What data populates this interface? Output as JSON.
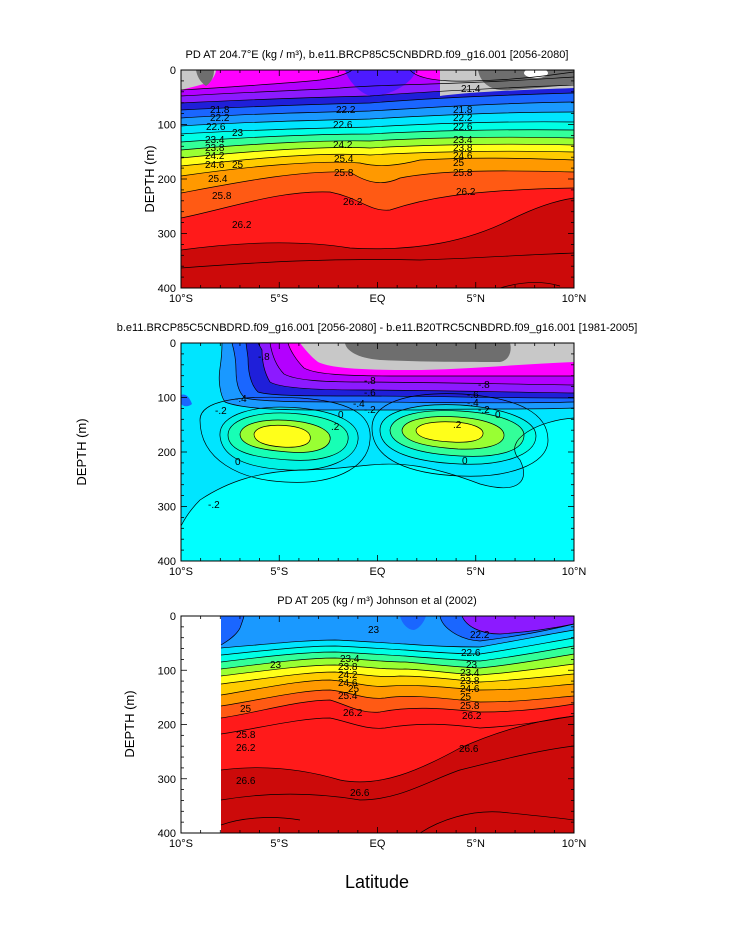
{
  "figure": {
    "xlabel": "Latitude",
    "colors": {
      "magenta": "#ff00ff",
      "violet": "#b300ff",
      "purple": "#8c1aff",
      "blue_dark": "#1f1fd9",
      "blue": "#1a66ff",
      "sky": "#1a99ff",
      "cyan": "#00e5ff",
      "aqua": "#00ffe5",
      "green": "#33ff99",
      "lime": "#99ff33",
      "yellow": "#ffff1a",
      "gold": "#ffcc00",
      "orange": "#ff9900",
      "orange_red": "#ff5a14",
      "red": "#ff1a1a",
      "dark_red": "#cc0a0a",
      "gray_light": "#c8c8c8",
      "gray_mid": "#a6a6a6",
      "gray_dark": "#6e6e6e",
      "white": "#ffffff"
    }
  },
  "chart_data": [
    {
      "type": "heatmap",
      "title": "PD AT 204.7°E (kg / m³), b.e11.BRCP85C5CNBDRD.f09_g16.001 [2056-2080]",
      "xlabel": "",
      "ylabel": "DEPTH (m)",
      "xlim": [
        -10,
        10
      ],
      "ylim": [
        400,
        0
      ],
      "x_tick_labels": [
        "10°S",
        "5°S",
        "EQ",
        "5°N",
        "10°N"
      ],
      "y_tick_labels": [
        "0",
        "100",
        "200",
        "300",
        "400"
      ],
      "contour_labels": [
        "21.8",
        "22.2",
        "22.6",
        "23",
        "23.4",
        "23.8",
        "24.2",
        "24.6",
        "25",
        "25.4",
        "25.8",
        "26.2",
        "21.4"
      ]
    },
    {
      "type": "heatmap",
      "title": "b.e11.BRCP85C5CNBDRD.f09_g16.001 [2056-2080] - b.e11.B20TRC5CNBDRD.f09_g16.001 [1981-2005]",
      "xlabel": "",
      "ylabel": "DEPTH (m)",
      "xlim": [
        -10,
        10
      ],
      "ylim": [
        400,
        0
      ],
      "x_tick_labels": [
        "10°S",
        "5°S",
        "EQ",
        "5°N",
        "10°N"
      ],
      "y_tick_labels": [
        "0",
        "100",
        "200",
        "300",
        "400"
      ],
      "contour_labels": [
        "-.8",
        "-.6",
        "-.4",
        "-.2",
        "0",
        ".2",
        "-.2"
      ]
    },
    {
      "type": "heatmap",
      "title": "PD AT 205 (kg / m³) Johnson et al (2002)",
      "xlabel": "",
      "ylabel": "DEPTH (m)",
      "xlim": [
        -10,
        10
      ],
      "ylim": [
        400,
        0
      ],
      "x_tick_labels": [
        "10°S",
        "5°S",
        "EQ",
        "5°N",
        "10°N"
      ],
      "y_tick_labels": [
        "0",
        "100",
        "200",
        "300",
        "400"
      ],
      "contour_labels": [
        "22.2",
        "22.6",
        "23",
        "23.4",
        "23.8",
        "24.2",
        "24.6",
        "25",
        "25.4",
        "25.8",
        "26.2",
        "26.6"
      ]
    }
  ]
}
